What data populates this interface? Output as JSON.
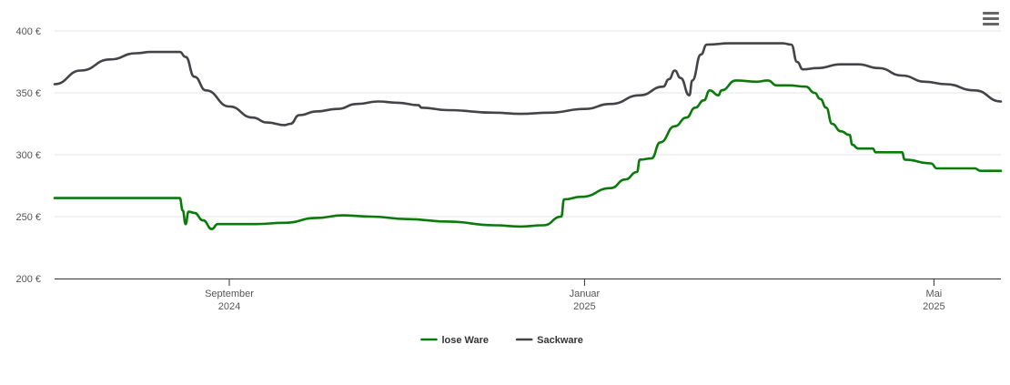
{
  "chart_data": {
    "type": "line",
    "title": "",
    "xlabel": "",
    "ylabel": "",
    "ylim": [
      200,
      400
    ],
    "y_ticks": [
      {
        "value": 200,
        "label": "200 €"
      },
      {
        "value": 250,
        "label": "250 €"
      },
      {
        "value": 300,
        "label": "300 €"
      },
      {
        "value": 350,
        "label": "350 €"
      },
      {
        "value": 400,
        "label": "400 €"
      }
    ],
    "xlim": [
      "2024-07-03",
      "2025-05-24"
    ],
    "x_ticks": [
      {
        "date": "2024-09-01",
        "line1": "September",
        "line2": "2024"
      },
      {
        "date": "2025-01-01",
        "line1": "Januar",
        "line2": "2025"
      },
      {
        "date": "2025-05-01",
        "line1": "Mai",
        "line2": "2025"
      }
    ],
    "grid": true,
    "legend_position": "bottom-center",
    "series": [
      {
        "name": "lose Ware",
        "color": "#0a7a0a",
        "points": [
          [
            "2024-07-03",
            265
          ],
          [
            "2024-08-13",
            265
          ],
          [
            "2024-08-15",
            265
          ],
          [
            "2024-08-16",
            255
          ],
          [
            "2024-08-17",
            244
          ],
          [
            "2024-08-18",
            254
          ],
          [
            "2024-08-20",
            253
          ],
          [
            "2024-08-23",
            247
          ],
          [
            "2024-08-26",
            240
          ],
          [
            "2024-08-28",
            244
          ],
          [
            "2024-09-10",
            244
          ],
          [
            "2024-09-20",
            245
          ],
          [
            "2024-10-01",
            249
          ],
          [
            "2024-10-10",
            251
          ],
          [
            "2024-10-20",
            250
          ],
          [
            "2024-11-01",
            248
          ],
          [
            "2024-11-15",
            246
          ],
          [
            "2024-12-01",
            243
          ],
          [
            "2024-12-10",
            242
          ],
          [
            "2024-12-18",
            243
          ],
          [
            "2024-12-24",
            250
          ],
          [
            "2024-12-25",
            264
          ],
          [
            "2024-12-31",
            266
          ],
          [
            "2025-01-10",
            273
          ],
          [
            "2025-01-15",
            280
          ],
          [
            "2025-01-19",
            286
          ],
          [
            "2025-01-20",
            296
          ],
          [
            "2025-01-24",
            297
          ],
          [
            "2025-01-27",
            310
          ],
          [
            "2025-02-01",
            323
          ],
          [
            "2025-02-05",
            330
          ],
          [
            "2025-02-08",
            338
          ],
          [
            "2025-02-11",
            344
          ],
          [
            "2025-02-13",
            352
          ],
          [
            "2025-02-16",
            348
          ],
          [
            "2025-02-17",
            352
          ],
          [
            "2025-02-22",
            360
          ],
          [
            "2025-03-01",
            359
          ],
          [
            "2025-03-05",
            360
          ],
          [
            "2025-03-08",
            356
          ],
          [
            "2025-03-12",
            356
          ],
          [
            "2025-03-18",
            355
          ],
          [
            "2025-03-21",
            350
          ],
          [
            "2025-03-23",
            345
          ],
          [
            "2025-03-25",
            338
          ],
          [
            "2025-03-27",
            325
          ],
          [
            "2025-03-30",
            319
          ],
          [
            "2025-04-02",
            316
          ],
          [
            "2025-04-03",
            308
          ],
          [
            "2025-04-05",
            305
          ],
          [
            "2025-04-10",
            305
          ],
          [
            "2025-04-11",
            302
          ],
          [
            "2025-04-20",
            302
          ],
          [
            "2025-04-21",
            296
          ],
          [
            "2025-04-30",
            293
          ],
          [
            "2025-05-02",
            289
          ],
          [
            "2025-05-15",
            289
          ],
          [
            "2025-05-17",
            287
          ],
          [
            "2025-05-24",
            287
          ]
        ]
      },
      {
        "name": "Sackware",
        "color": "#434348",
        "points": [
          [
            "2024-07-03",
            357
          ],
          [
            "2024-07-12",
            368
          ],
          [
            "2024-07-22",
            377
          ],
          [
            "2024-07-31",
            382
          ],
          [
            "2024-08-05",
            383
          ],
          [
            "2024-08-13",
            383
          ],
          [
            "2024-08-15",
            383
          ],
          [
            "2024-08-17",
            379
          ],
          [
            "2024-08-20",
            363
          ],
          [
            "2024-08-24",
            352
          ],
          [
            "2024-09-01",
            339
          ],
          [
            "2024-09-09",
            330
          ],
          [
            "2024-09-14",
            326
          ],
          [
            "2024-09-20",
            324
          ],
          [
            "2024-09-22",
            325
          ],
          [
            "2024-09-25",
            332
          ],
          [
            "2024-10-01",
            335
          ],
          [
            "2024-10-08",
            337
          ],
          [
            "2024-10-15",
            341
          ],
          [
            "2024-10-22",
            343
          ],
          [
            "2024-10-29",
            342
          ],
          [
            "2024-11-05",
            340
          ],
          [
            "2024-11-06",
            338
          ],
          [
            "2024-11-15",
            336
          ],
          [
            "2024-12-01",
            334
          ],
          [
            "2024-12-10",
            333
          ],
          [
            "2024-12-20",
            334
          ],
          [
            "2025-01-01",
            337
          ],
          [
            "2025-01-10",
            341
          ],
          [
            "2025-01-20",
            348
          ],
          [
            "2025-01-28",
            355
          ],
          [
            "2025-01-30",
            361
          ],
          [
            "2025-02-01",
            368
          ],
          [
            "2025-02-03",
            362
          ],
          [
            "2025-02-06",
            348
          ],
          [
            "2025-02-07",
            360
          ],
          [
            "2025-02-10",
            381
          ],
          [
            "2025-02-12",
            389
          ],
          [
            "2025-02-20",
            390
          ],
          [
            "2025-03-01",
            390
          ],
          [
            "2025-03-10",
            390
          ],
          [
            "2025-03-13",
            389
          ],
          [
            "2025-03-15",
            375
          ],
          [
            "2025-03-17",
            369
          ],
          [
            "2025-03-22",
            370
          ],
          [
            "2025-03-30",
            373
          ],
          [
            "2025-04-05",
            373
          ],
          [
            "2025-04-12",
            370
          ],
          [
            "2025-04-20",
            364
          ],
          [
            "2025-04-28",
            359
          ],
          [
            "2025-05-05",
            357
          ],
          [
            "2025-05-15",
            352
          ],
          [
            "2025-05-24",
            343
          ]
        ]
      }
    ]
  },
  "toolbar": {
    "menu_icon": "hamburger-menu-icon"
  }
}
